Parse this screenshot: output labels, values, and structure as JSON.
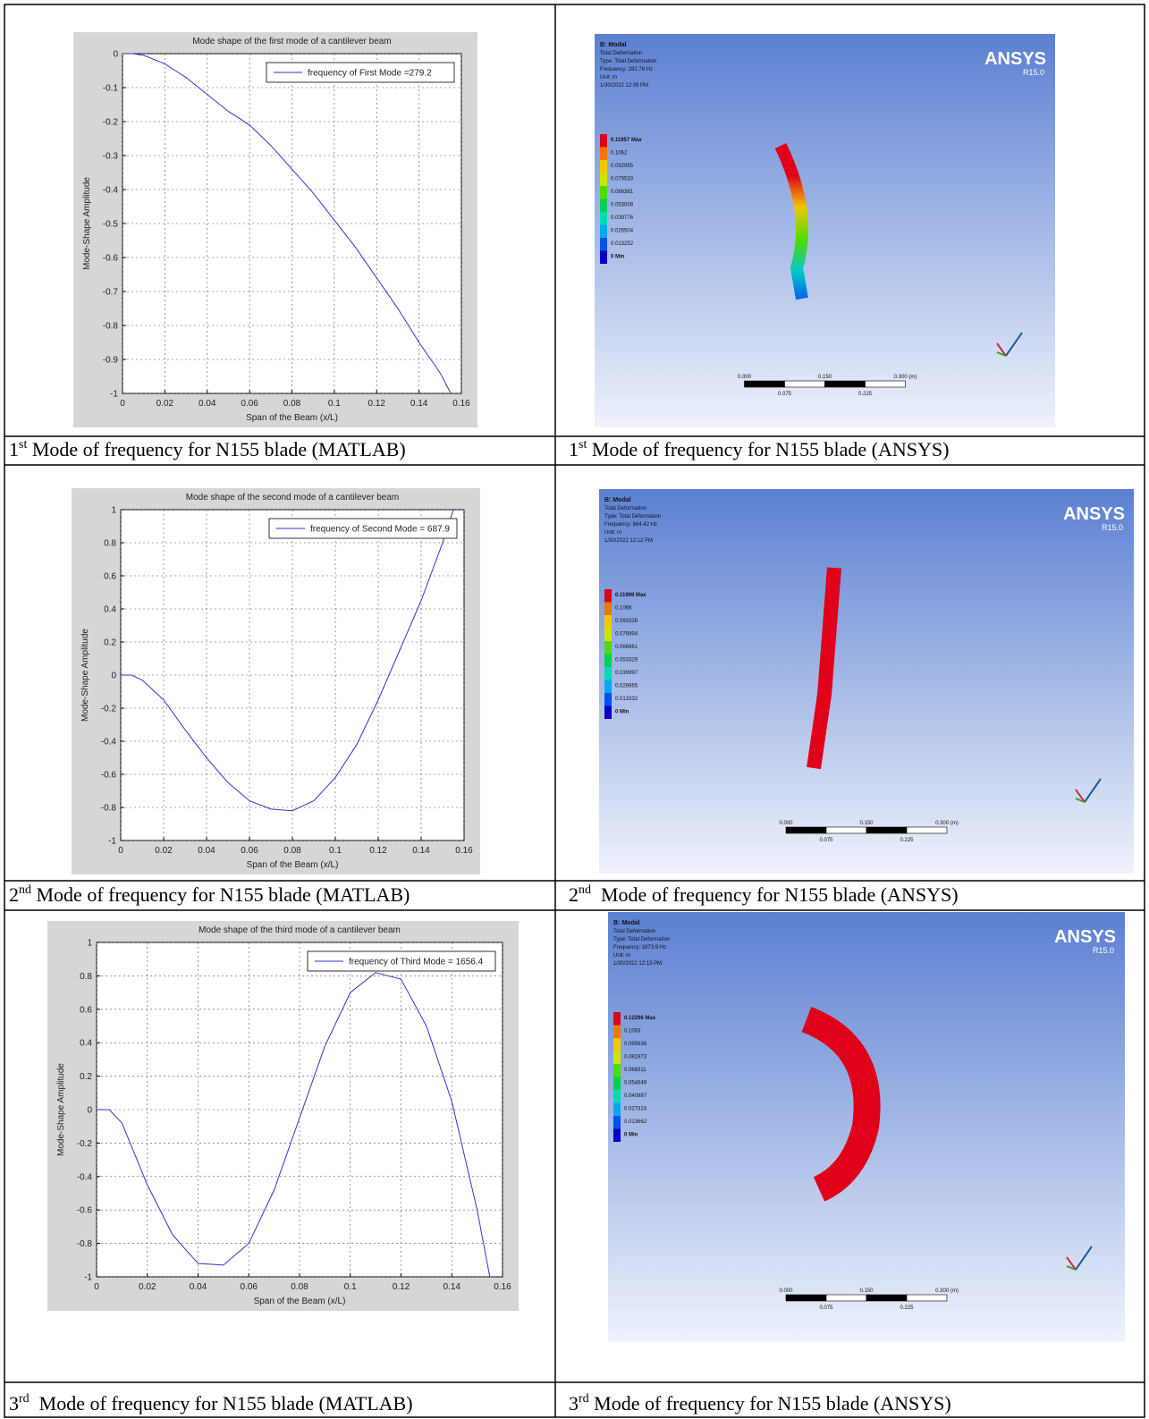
{
  "chart_data": [
    {
      "type": "line",
      "title": "Mode shape of the first mode of a cantilever beam",
      "x_label": "Span of the Beam (x/L)",
      "y_label": "Mode-Shape Amplitude",
      "x": [
        0,
        0.005,
        0.01,
        0.02,
        0.03,
        0.04,
        0.05,
        0.06,
        0.07,
        0.08,
        0.09,
        0.1,
        0.11,
        0.12,
        0.13,
        0.14,
        0.15,
        0.155
      ],
      "series": [
        {
          "name": "frequency of First Mode =279.2",
          "color": "#3333cc",
          "values": [
            0,
            0,
            -0.005,
            -0.03,
            -0.07,
            -0.12,
            -0.17,
            -0.21,
            -0.27,
            -0.34,
            -0.41,
            -0.49,
            -0.57,
            -0.66,
            -0.75,
            -0.85,
            -0.94,
            -1
          ]
        }
      ],
      "xlim": [
        0,
        0.16
      ],
      "xticks": [
        0,
        0.02,
        0.04,
        0.06,
        0.08,
        0.1,
        0.12,
        0.14,
        0.16
      ],
      "ylim": [
        -1,
        0
      ],
      "yticks": [
        0,
        -0.1,
        -0.2,
        -0.3,
        -0.4,
        -0.5,
        -0.6,
        -0.7,
        -0.8,
        -0.9,
        -1
      ],
      "grid": true,
      "legend": "upper right"
    },
    {
      "type": "line",
      "title": "Mode shape of the second mode of a cantilever beam",
      "x_label": "Span of the Beam (x/L)",
      "y_label": "Mode-Shape Amplitude",
      "x": [
        0,
        0.005,
        0.01,
        0.02,
        0.03,
        0.04,
        0.05,
        0.06,
        0.07,
        0.08,
        0.09,
        0.1,
        0.11,
        0.12,
        0.13,
        0.14,
        0.15,
        0.155
      ],
      "series": [
        {
          "name": "frequency of Second Mode = 687.9",
          "color": "#3333cc",
          "values": [
            0,
            0,
            -0.03,
            -0.15,
            -0.33,
            -0.5,
            -0.65,
            -0.76,
            -0.81,
            -0.82,
            -0.76,
            -0.62,
            -0.42,
            -0.15,
            0.15,
            0.45,
            0.8,
            1
          ]
        }
      ],
      "xlim": [
        0,
        0.16
      ],
      "xticks": [
        0,
        0.02,
        0.04,
        0.06,
        0.08,
        0.1,
        0.12,
        0.14,
        0.16
      ],
      "ylim": [
        -1,
        1
      ],
      "yticks": [
        1,
        0.8,
        0.6,
        0.4,
        0.2,
        0,
        -0.2,
        -0.4,
        -0.6,
        -0.8,
        -1
      ],
      "grid": true,
      "legend": "upper right"
    },
    {
      "type": "line",
      "title": "Mode shape of the third mode of a cantilever beam",
      "x_label": "Span of the Beam (x/L)",
      "y_label": "Mode-Shape Amplitude",
      "x": [
        0,
        0.005,
        0.01,
        0.02,
        0.03,
        0.04,
        0.05,
        0.06,
        0.07,
        0.08,
        0.09,
        0.1,
        0.11,
        0.12,
        0.13,
        0.14,
        0.15,
        0.155
      ],
      "series": [
        {
          "name": "frequency of Third Mode = 1656.4",
          "color": "#3333cc",
          "values": [
            0,
            0,
            -0.08,
            -0.45,
            -0.75,
            -0.92,
            -0.93,
            -0.8,
            -0.48,
            -0.05,
            0.38,
            0.7,
            0.82,
            0.78,
            0.5,
            0.05,
            -0.6,
            -1
          ]
        }
      ],
      "xlim": [
        0,
        0.16
      ],
      "xticks": [
        0,
        0.02,
        0.04,
        0.06,
        0.08,
        0.1,
        0.12,
        0.14,
        0.16
      ],
      "ylim": [
        -1,
        1
      ],
      "yticks": [
        1,
        0.8,
        0.6,
        0.4,
        0.2,
        0,
        -0.2,
        -0.4,
        -0.6,
        -0.8,
        -1
      ],
      "grid": true,
      "legend": "upper right"
    }
  ],
  "ansys": [
    {
      "header": [
        "B: Modal",
        "Total Deformation",
        "Type: Total Deformation",
        "Frequency: 282.78 Hz",
        "Unit: m",
        "1/30/2022 12:09 PM"
      ],
      "logo": "ANSYS",
      "version": "R15.0",
      "legend": [
        "0.11957 Max",
        "0.1062",
        "0.092955",
        "0.079533",
        "0.066381",
        "0.053008",
        "0.039776",
        "0.026504",
        "0.013252",
        "0 Min"
      ],
      "scale": [
        "0.000",
        "0.150",
        "0.300 (m)",
        "0.075",
        "0.225"
      ]
    },
    {
      "header": [
        "B: Modal",
        "Total Deformation",
        "Type: Total Deformation",
        "Frequency: 684.42 Hz",
        "Unit: m",
        "1/30/2022 12:12 PM"
      ],
      "logo": "ANSYS",
      "version": "R15.0",
      "legend": [
        "0.11999 Max",
        "0.1066",
        "0.093328",
        "0.079994",
        "0.066661",
        "0.053329",
        "0.039997",
        "0.026665",
        "0.013332",
        "0 Min"
      ],
      "scale": [
        "0.000",
        "0.150",
        "0.300 (m)",
        "0.075",
        "0.225"
      ]
    },
    {
      "header": [
        "B: Modal",
        "Total Deformation",
        "Type: Total Deformation",
        "Frequency: 1673.9 Hz",
        "Unit: m",
        "1/30/2022 12:13 PM"
      ],
      "logo": "ANSYS",
      "version": "R15.0",
      "legend": [
        "0.12296 Max",
        "0.1093",
        "0.095636",
        "0.081973",
        "0.068311",
        "0.054649",
        "0.040987",
        "0.027324",
        "0.013662",
        "0 Min"
      ],
      "scale": [
        "0.000",
        "0.150",
        "0.300 (m)",
        "0.075",
        "0.225"
      ]
    }
  ],
  "table": {
    "captions": [
      [
        {
          "ordinal": "1",
          "suffix": "st",
          "text": " Mode of frequency for N155 blade (MATLAB)"
        },
        {
          "ordinal": "1",
          "suffix": "st",
          "text": " Mode of frequency for N155 blade (ANSYS)"
        }
      ],
      [
        {
          "ordinal": "2",
          "suffix": "nd",
          "text": " Mode of frequency for N155 blade (MATLAB)"
        },
        {
          "ordinal": "2",
          "suffix": "nd",
          "text": "  Mode of frequency for N155 blade (ANSYS)"
        }
      ],
      [
        {
          "ordinal": "3",
          "suffix": "rd",
          "text": "  Mode of frequency for N155 blade (MATLAB)"
        },
        {
          "ordinal": "3",
          "suffix": "rd",
          "text": " Mode of frequency for N155 blade (ANSYS)"
        }
      ]
    ]
  }
}
